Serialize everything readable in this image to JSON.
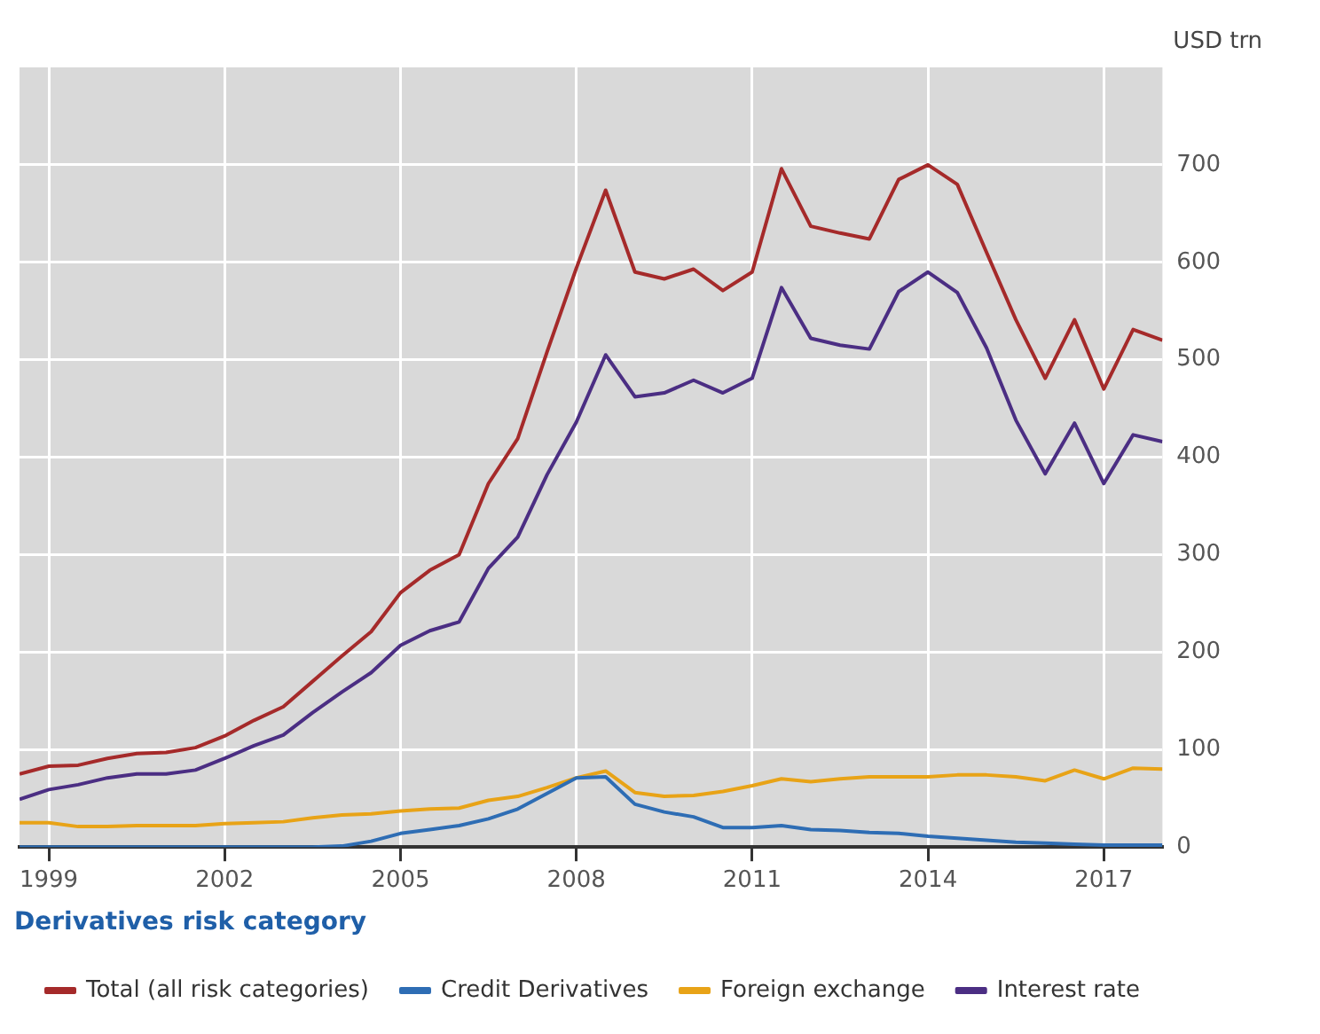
{
  "chart_data": {
    "type": "line",
    "ylabel": "USD trn",
    "legend_title": "Derivatives risk category",
    "x": [
      1998.5,
      1999,
      1999.5,
      2000,
      2000.5,
      2001,
      2001.5,
      2002,
      2002.5,
      2003,
      2003.5,
      2004,
      2004.5,
      2005,
      2005.5,
      2006,
      2006.5,
      2007,
      2007.5,
      2008,
      2008.5,
      2009,
      2009.5,
      2010,
      2010.5,
      2011,
      2011.5,
      2012,
      2012.5,
      2013,
      2013.5,
      2014,
      2014.5,
      2015,
      2015.5,
      2016,
      2016.5,
      2017,
      2017.5,
      2018
    ],
    "series": [
      {
        "name": "Total (all risk categories)",
        "color": "#a52a2a",
        "values": [
          75,
          83,
          84,
          91,
          96,
          97,
          102,
          114,
          130,
          144,
          170,
          196,
          221,
          261,
          284,
          300,
          373,
          419,
          508,
          594,
          674,
          590,
          583,
          593,
          571,
          590,
          696,
          637,
          630,
          624,
          685,
          700,
          680,
          610,
          541,
          481,
          541,
          470,
          531,
          520
        ]
      },
      {
        "name": "Credit Derivatives",
        "color": "#2e6db4",
        "values": [
          0,
          0,
          0,
          0,
          0,
          0,
          0,
          0,
          0,
          0,
          0,
          1,
          6,
          14,
          18,
          22,
          29,
          39,
          55,
          71,
          72,
          44,
          36,
          31,
          20,
          20,
          22,
          18,
          17,
          15,
          14,
          11,
          9,
          7,
          5,
          4,
          3,
          2,
          2,
          2
        ]
      },
      {
        "name": "Foreign exchange",
        "color": "#e8a317",
        "values": [
          25,
          25,
          21,
          21,
          22,
          22,
          22,
          24,
          25,
          26,
          30,
          33,
          34,
          37,
          39,
          40,
          48,
          52,
          61,
          71,
          78,
          56,
          52,
          53,
          57,
          63,
          70,
          67,
          70,
          72,
          72,
          72,
          74,
          74,
          72,
          68,
          79,
          70,
          81,
          80
        ]
      },
      {
        "name": "Interest rate",
        "color": "#4b2e83",
        "values": [
          49,
          59,
          64,
          71,
          75,
          75,
          79,
          91,
          104,
          115,
          138,
          159,
          179,
          207,
          222,
          231,
          286,
          318,
          382,
          436,
          505,
          462,
          466,
          479,
          466,
          481,
          574,
          522,
          515,
          511,
          570,
          590,
          569,
          512,
          438,
          383,
          435,
          373,
          423,
          416
        ]
      }
    ],
    "xlim": [
      1998.5,
      2018
    ],
    "xticks": [
      1999,
      2002,
      2005,
      2008,
      2011,
      2014,
      2017
    ],
    "ylim": [
      0,
      800
    ],
    "yticks": [
      0,
      100,
      200,
      300,
      400,
      500,
      600,
      700
    ],
    "grid": true,
    "legend": "bottom",
    "marker": "none",
    "line_style": "solid"
  }
}
